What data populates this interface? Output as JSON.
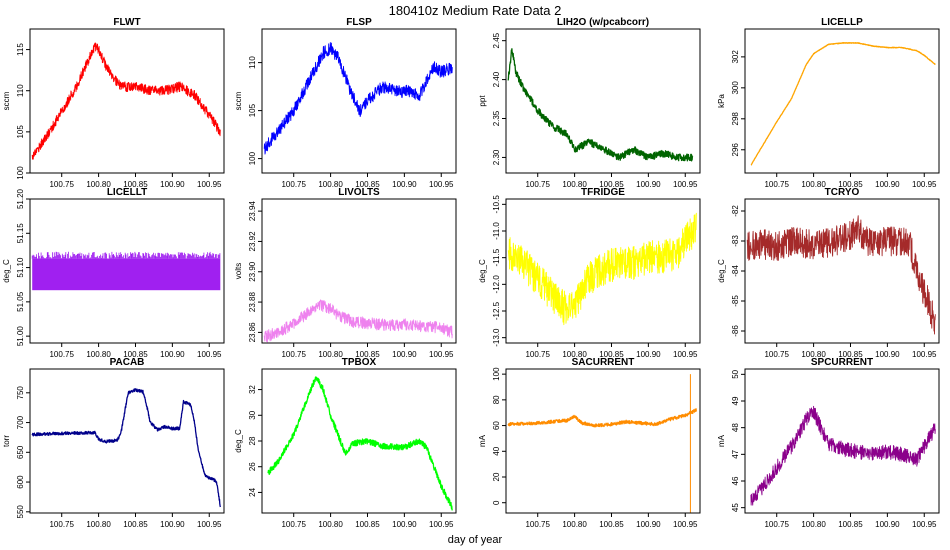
{
  "figure": {
    "title": "180410z   Medium Rate Data 2",
    "xlabel": "day of year"
  },
  "chart_data": [
    {
      "type": "line",
      "title": "FLWT",
      "ylabel": "sccm",
      "color": "#ff0000",
      "xlim": [
        100.707,
        100.97
      ],
      "ylim": [
        100,
        117.5
      ],
      "xticks": [
        "100.75",
        "100.80",
        "100.85",
        "100.90",
        "100.95"
      ],
      "xtick_values": [
        100.75,
        100.8,
        100.85,
        100.9,
        100.95
      ],
      "yticks": [
        "100",
        "105",
        "110",
        "115"
      ],
      "ytick_values": [
        100,
        105,
        110,
        115
      ],
      "noise": 1.2,
      "series": [
        {
          "name": "FLWT",
          "x": [
            100.71,
            100.73,
            100.75,
            100.77,
            100.785,
            100.795,
            100.8,
            100.81,
            100.82,
            100.83,
            100.85,
            100.87,
            100.89,
            100.91,
            100.93,
            100.95,
            100.965
          ],
          "y": [
            102,
            104.5,
            107.5,
            110.5,
            113.5,
            115.5,
            115,
            113,
            111.5,
            110.5,
            110.5,
            110,
            110,
            110.5,
            109.5,
            107,
            105
          ]
        }
      ]
    },
    {
      "type": "line",
      "title": "FLSP",
      "ylabel": "sccm",
      "color": "#0000ff",
      "xlim": [
        100.707,
        100.97
      ],
      "ylim": [
        98.5,
        113.5
      ],
      "xticks": [
        "100.75",
        "100.80",
        "100.85",
        "100.90",
        "100.95"
      ],
      "xtick_values": [
        100.75,
        100.8,
        100.85,
        100.9,
        100.95
      ],
      "yticks": [
        "100",
        "105",
        "110"
      ],
      "ytick_values": [
        100,
        105,
        110
      ],
      "noise": 1.3,
      "series": [
        {
          "name": "FLSP",
          "x": [
            100.71,
            100.73,
            100.75,
            100.77,
            100.79,
            100.8,
            100.81,
            100.82,
            100.83,
            100.84,
            100.85,
            100.87,
            100.89,
            100.91,
            100.92,
            100.93,
            100.94,
            100.95,
            100.965
          ],
          "y": [
            101,
            103,
            105,
            108,
            111,
            111.5,
            110.5,
            108.5,
            106.5,
            105,
            106,
            107.5,
            107,
            107,
            106.5,
            108,
            109.5,
            109,
            109.5
          ]
        }
      ]
    },
    {
      "type": "line",
      "title": "LIH2O (w/pcabcorr)",
      "ylabel": "ppt",
      "color": "#006400",
      "xlim": [
        100.707,
        100.97
      ],
      "ylim": [
        2.28,
        2.465
      ],
      "xticks": [
        "100.75",
        "100.80",
        "100.85",
        "100.90",
        "100.95"
      ],
      "xtick_values": [
        100.75,
        100.8,
        100.85,
        100.9,
        100.95
      ],
      "yticks": [
        "2.30",
        "2.35",
        "2.40",
        "2.45"
      ],
      "ytick_values": [
        2.3,
        2.35,
        2.4,
        2.45
      ],
      "noise": 0.009,
      "series": [
        {
          "name": "LIH2O",
          "x": [
            100.71,
            100.715,
            100.72,
            100.73,
            100.75,
            100.77,
            100.79,
            100.8,
            100.82,
            100.84,
            100.86,
            100.88,
            100.9,
            100.92,
            100.94,
            100.96
          ],
          "y": [
            2.4,
            2.44,
            2.41,
            2.39,
            2.36,
            2.34,
            2.33,
            2.31,
            2.32,
            2.31,
            2.3,
            2.31,
            2.3,
            2.305,
            2.3,
            2.3
          ]
        }
      ]
    },
    {
      "type": "line",
      "title": "LICELLP",
      "ylabel": "kPa",
      "color": "#ffa500",
      "xlim": [
        100.707,
        100.97
      ],
      "ylim": [
        294.5,
        303.8
      ],
      "xticks": [
        "100.75",
        "100.80",
        "100.85",
        "100.90",
        "100.95"
      ],
      "xtick_values": [
        100.75,
        100.8,
        100.85,
        100.9,
        100.95
      ],
      "yticks": [
        "296",
        "298",
        "300",
        "302"
      ],
      "ytick_values": [
        296,
        298,
        300,
        302
      ],
      "noise": 0.04,
      "series": [
        {
          "name": "LICELLP",
          "x": [
            100.715,
            100.73,
            100.75,
            100.77,
            100.79,
            100.8,
            100.82,
            100.84,
            100.86,
            100.88,
            100.9,
            100.92,
            100.94,
            100.95,
            100.965
          ],
          "y": [
            295,
            296.2,
            297.8,
            299.3,
            301.5,
            302.2,
            302.8,
            302.9,
            302.9,
            302.7,
            302.6,
            302.6,
            302.4,
            302.1,
            301.5
          ]
        }
      ]
    },
    {
      "type": "line",
      "title": "LICELLT",
      "ylabel": "deg_C",
      "color": "#a020f0",
      "xlim": [
        100.707,
        100.97
      ],
      "ylim": [
        50.99,
        51.2
      ],
      "xticks": [
        "100.75",
        "100.80",
        "100.85",
        "100.90",
        "100.95"
      ],
      "xtick_values": [
        100.75,
        100.8,
        100.85,
        100.9,
        100.95
      ],
      "yticks": [
        "51.00",
        "51.05",
        "51.10",
        "51.15",
        "51.20"
      ],
      "ytick_values": [
        51.0,
        51.05,
        51.1,
        51.15,
        51.2
      ],
      "noise": 0.0,
      "band": [
        51.067,
        51.113
      ],
      "series": [
        {
          "name": "LICELLT",
          "x": [
            100.71,
            100.965
          ],
          "y": [
            51.09,
            51.09
          ]
        }
      ]
    },
    {
      "type": "line",
      "title": "LIVOLTS",
      "ylabel": "volts",
      "color": "#ee82ee",
      "xlim": [
        100.707,
        100.97
      ],
      "ylim": [
        23.853,
        23.948
      ],
      "xticks": [
        "100.75",
        "100.80",
        "100.85",
        "100.90",
        "100.95"
      ],
      "xtick_values": [
        100.75,
        100.8,
        100.85,
        100.9,
        100.95
      ],
      "yticks": [
        "23.86",
        "23.88",
        "23.90",
        "23.92",
        "23.94"
      ],
      "ytick_values": [
        23.86,
        23.88,
        23.9,
        23.92,
        23.94
      ],
      "noise": 0.008,
      "series": [
        {
          "name": "LIVOLTS",
          "x": [
            100.71,
            100.73,
            100.75,
            100.77,
            100.785,
            100.8,
            100.81,
            100.83,
            100.85,
            100.87,
            100.9,
            100.93,
            100.95,
            100.965
          ],
          "y": [
            23.857,
            23.86,
            23.866,
            23.873,
            23.878,
            23.876,
            23.871,
            23.867,
            23.866,
            23.865,
            23.865,
            23.864,
            23.863,
            23.86
          ]
        }
      ]
    },
    {
      "type": "line",
      "title": "TFRIDGE",
      "ylabel": "deg_C",
      "color": "#ffff00",
      "xlim": [
        100.707,
        100.97
      ],
      "ylim": [
        -13.1,
        -10.4
      ],
      "xticks": [
        "100.75",
        "100.80",
        "100.85",
        "100.90",
        "100.95"
      ],
      "xtick_values": [
        100.75,
        100.8,
        100.85,
        100.9,
        100.95
      ],
      "yticks": [
        "-13.0",
        "-12.5",
        "-12.0",
        "-11.5",
        "-11.0",
        "-10.5"
      ],
      "ytick_values": [
        -13.0,
        -12.5,
        -12.0,
        -11.5,
        -11.0,
        -10.5
      ],
      "noise": 0.65,
      "series": [
        {
          "name": "TFRIDGE",
          "x": [
            100.71,
            100.73,
            100.75,
            100.77,
            100.79,
            100.8,
            100.81,
            100.82,
            100.84,
            100.86,
            100.88,
            100.9,
            100.92,
            100.94,
            100.95,
            100.965
          ],
          "y": [
            -11.4,
            -11.6,
            -11.9,
            -12.2,
            -12.5,
            -12.4,
            -12.1,
            -11.9,
            -11.7,
            -11.6,
            -11.6,
            -11.5,
            -11.5,
            -11.4,
            -11.2,
            -10.9
          ]
        }
      ]
    },
    {
      "type": "line",
      "title": "TCRYO",
      "ylabel": "deg_C",
      "color": "#a52a2a",
      "xlim": [
        100.707,
        100.97
      ],
      "ylim": [
        -86.4,
        -81.6
      ],
      "xticks": [
        "100.75",
        "100.80",
        "100.85",
        "100.90",
        "100.95"
      ],
      "xtick_values": [
        100.75,
        100.8,
        100.85,
        100.9,
        100.95
      ],
      "yticks": [
        "-86",
        "-85",
        "-84",
        "-83",
        "-82"
      ],
      "ytick_values": [
        -86,
        -85,
        -84,
        -83,
        -82
      ],
      "noise": 1.0,
      "series": [
        {
          "name": "TCRYO",
          "x": [
            100.71,
            100.73,
            100.75,
            100.77,
            100.79,
            100.81,
            100.83,
            100.85,
            100.86,
            100.87,
            100.89,
            100.91,
            100.93,
            100.935,
            100.945,
            100.955,
            100.965
          ],
          "y": [
            -83.2,
            -83.1,
            -83.2,
            -83.0,
            -83.1,
            -83.1,
            -83.0,
            -82.8,
            -82.5,
            -83.0,
            -83.0,
            -83.0,
            -83.0,
            -83.6,
            -84.4,
            -85.0,
            -85.8
          ]
        }
      ]
    },
    {
      "type": "line",
      "title": "PACAB",
      "ylabel": "torr",
      "color": "#00008b",
      "xlim": [
        100.707,
        100.97
      ],
      "ylim": [
        548,
        790
      ],
      "xticks": [
        "100.75",
        "100.80",
        "100.85",
        "100.90",
        "100.95"
      ],
      "xtick_values": [
        100.75,
        100.8,
        100.85,
        100.9,
        100.95
      ],
      "yticks": [
        "550",
        "600",
        "650",
        "700",
        "750"
      ],
      "ytick_values": [
        550,
        600,
        650,
        700,
        750
      ],
      "noise": 5,
      "series": [
        {
          "name": "PACAB",
          "x": [
            100.71,
            100.76,
            100.795,
            100.8,
            100.81,
            100.825,
            100.83,
            100.84,
            100.85,
            100.86,
            100.865,
            100.87,
            100.88,
            100.89,
            100.9,
            100.91,
            100.915,
            100.925,
            100.93,
            100.935,
            100.94,
            100.945,
            100.955,
            100.96,
            100.965
          ],
          "y": [
            680,
            682,
            683,
            672,
            668,
            670,
            680,
            750,
            755,
            752,
            730,
            700,
            688,
            693,
            690,
            690,
            735,
            730,
            700,
            655,
            630,
            610,
            605,
            600,
            560
          ]
        }
      ]
    },
    {
      "type": "line",
      "title": "TPBOX",
      "ylabel": "deg_C",
      "color": "#00ff00",
      "xlim": [
        100.707,
        100.97
      ],
      "ylim": [
        22.4,
        33.6
      ],
      "xticks": [
        "100.75",
        "100.80",
        "100.85",
        "100.90",
        "100.95"
      ],
      "xtick_values": [
        100.75,
        100.8,
        100.85,
        100.9,
        100.95
      ],
      "yticks": [
        "24",
        "26",
        "28",
        "30",
        "32"
      ],
      "ytick_values": [
        24,
        26,
        28,
        30,
        32
      ],
      "noise": 0.45,
      "series": [
        {
          "name": "TPBOX",
          "x": [
            100.715,
            100.73,
            100.75,
            100.77,
            100.78,
            100.79,
            100.8,
            100.81,
            100.82,
            100.83,
            100.85,
            100.87,
            100.9,
            100.92,
            100.93,
            100.94,
            100.95,
            100.965
          ],
          "y": [
            25.5,
            26.5,
            28.5,
            31.5,
            33.0,
            32.0,
            30.0,
            28.5,
            27.0,
            27.8,
            28.0,
            27.6,
            27.5,
            28.0,
            27.5,
            26.0,
            24.5,
            22.8
          ]
        }
      ]
    },
    {
      "type": "line",
      "title": "SACURRENT",
      "ylabel": "mA",
      "color": "#ff8c00",
      "xlim": [
        100.707,
        100.97
      ],
      "ylim": [
        -8,
        104
      ],
      "xticks": [
        "100.75",
        "100.80",
        "100.85",
        "100.90",
        "100.95"
      ],
      "xtick_values": [
        100.75,
        100.8,
        100.85,
        100.9,
        100.95
      ],
      "yticks": [
        "0",
        "20",
        "40",
        "60",
        "80",
        "100"
      ],
      "ytick_values": [
        0,
        20,
        40,
        60,
        80,
        100
      ],
      "noise": 2.5,
      "spike": {
        "x": 100.957,
        "y0": -8,
        "y1": 100
      },
      "series": [
        {
          "name": "SACURRENT",
          "x": [
            100.71,
            100.75,
            100.79,
            100.8,
            100.81,
            100.83,
            100.85,
            100.87,
            100.89,
            100.91,
            100.93,
            100.95,
            100.965
          ],
          "y": [
            61,
            62,
            64,
            67,
            62,
            60,
            61,
            63,
            62,
            61,
            65,
            68,
            72
          ]
        }
      ]
    },
    {
      "type": "line",
      "title": "SPCURRENT",
      "ylabel": "mA",
      "color": "#8b008b",
      "xlim": [
        100.707,
        100.97
      ],
      "ylim": [
        44.8,
        50.2
      ],
      "xticks": [
        "100.75",
        "100.80",
        "100.85",
        "100.90",
        "100.95"
      ],
      "xtick_values": [
        100.75,
        100.8,
        100.85,
        100.9,
        100.95
      ],
      "yticks": [
        "45",
        "46",
        "47",
        "48",
        "49",
        "50"
      ],
      "ytick_values": [
        45,
        46,
        47,
        48,
        49,
        50
      ],
      "noise": 0.55,
      "series": [
        {
          "name": "SPCURRENT",
          "x": [
            100.715,
            100.73,
            100.75,
            100.77,
            100.79,
            100.8,
            100.81,
            100.82,
            100.84,
            100.86,
            100.88,
            100.9,
            100.92,
            100.94,
            100.95,
            100.965
          ],
          "y": [
            45.3,
            45.7,
            46.5,
            47.3,
            48.3,
            48.6,
            48.0,
            47.4,
            47.2,
            47.1,
            47.0,
            47.1,
            47.0,
            46.8,
            47.3,
            48.0
          ]
        }
      ]
    }
  ]
}
